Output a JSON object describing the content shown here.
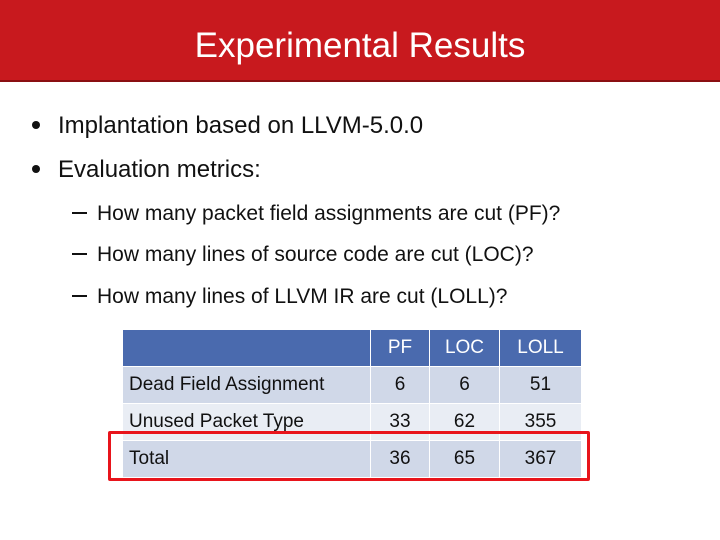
{
  "header": {
    "title": "Experimental Results"
  },
  "bullets": [
    "Implantation based on LLVM-5.0.0",
    "Evaluation metrics:"
  ],
  "sub_bullets": [
    "How many packet field assignments are cut (PF)?",
    "How many lines of source code are cut (LOC)?",
    "How many lines of LLVM IR are cut (LOLL)?"
  ],
  "table": {
    "columns": [
      "PF",
      "LOC",
      "LOLL"
    ],
    "rows": [
      [
        "Dead Field Assignment",
        6,
        6,
        51
      ],
      [
        "Unused Packet Type",
        33,
        62,
        355
      ],
      [
        "Total",
        36,
        65,
        367
      ]
    ]
  }
}
